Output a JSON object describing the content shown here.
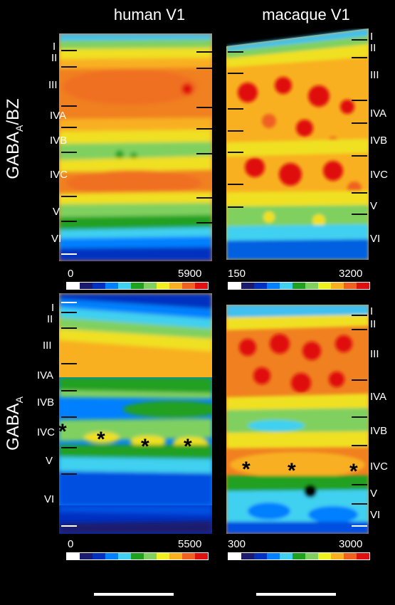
{
  "titles": {
    "human": "human V1",
    "macaque": "macaque V1"
  },
  "row_labels": {
    "top_main": "GABA",
    "top_sub": "A",
    "top_tail": "/BZ",
    "bottom_main": "GABA",
    "bottom_sub": "A"
  },
  "layers": {
    "I": "I",
    "II": "II",
    "III": "III",
    "IVA": "IVA",
    "IVB": "IVB",
    "IVC": "IVC",
    "V": "V",
    "VI": "VI"
  },
  "scales": {
    "top_left_min": "0",
    "top_left_max": "5900",
    "top_right_min": "150",
    "top_right_max": "3200",
    "bottom_left_min": "0",
    "bottom_left_max": "5500",
    "bottom_right_min": "300",
    "bottom_right_max": "3000"
  },
  "asterisk": "*",
  "colormap": [
    "#ffffff",
    "#1a1a6e",
    "#0030c0",
    "#0080ff",
    "#40d0f0",
    "#20a020",
    "#80d060",
    "#f0f020",
    "#f8b020",
    "#f06020",
    "#e01010"
  ]
}
